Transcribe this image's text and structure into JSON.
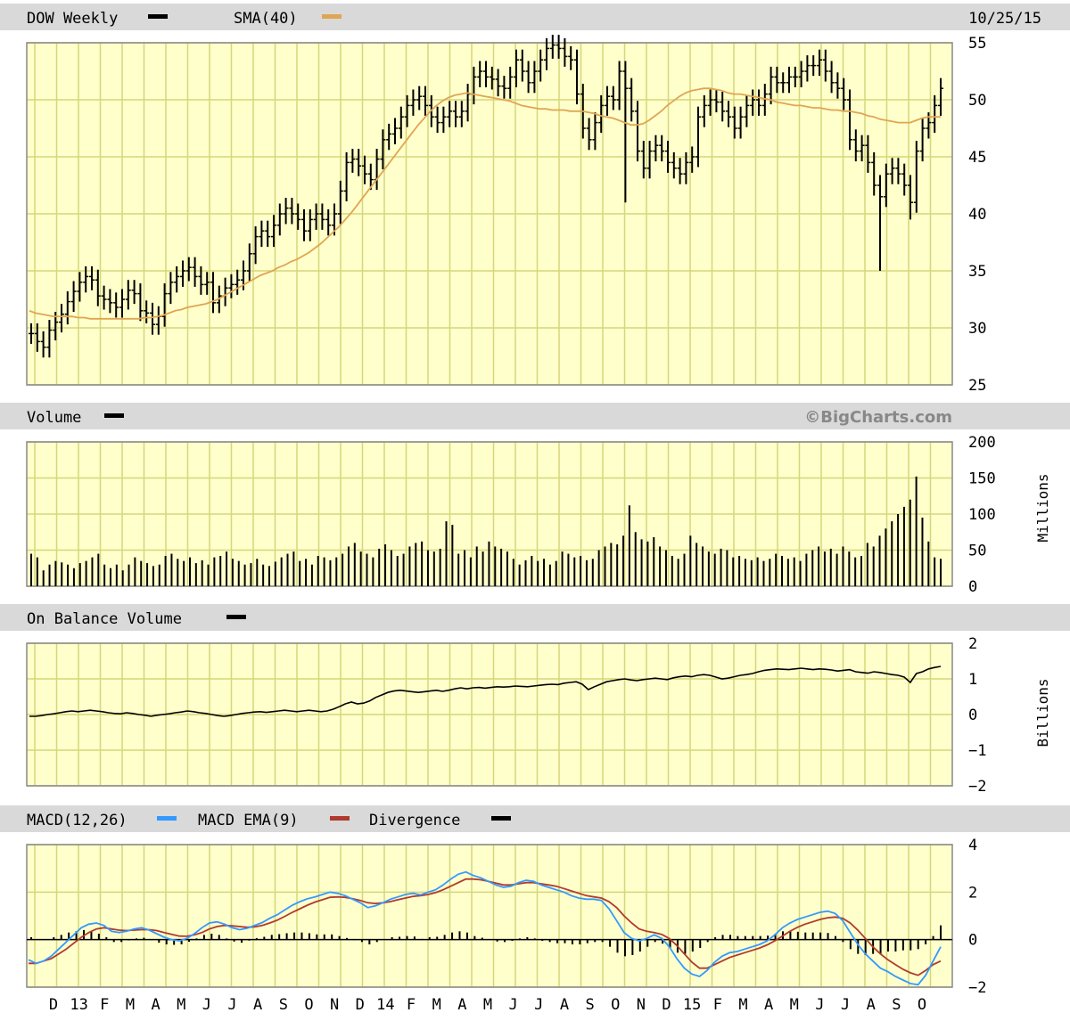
{
  "header": {
    "symbol_label": "DOW Weekly",
    "sma_label": "SMA(40)",
    "date": "10/25/15"
  },
  "volume_panel": {
    "label": "Volume",
    "units": "Millions",
    "watermark": "©BigCharts.com"
  },
  "obv_panel": {
    "label": "On Balance Volume",
    "units": "Billions"
  },
  "macd_panel": {
    "label_macd": "MACD(12,26)",
    "label_ema": "MACD EMA(9)",
    "label_div": "Divergence"
  },
  "x_axis_labels": [
    "D",
    "13",
    "F",
    "M",
    "A",
    "M",
    "J",
    "J",
    "A",
    "S",
    "O",
    "N",
    "D",
    "14",
    "F",
    "M",
    "A",
    "M",
    "J",
    "J",
    "A",
    "S",
    "O",
    "N",
    "D",
    "15",
    "F",
    "M",
    "A",
    "M",
    "J",
    "J",
    "A",
    "S",
    "O"
  ],
  "colors": {
    "plot_bg": "#FFFFCC",
    "grid": "#D6D67A",
    "header_bg": "#D9D9D9",
    "price": "#000000",
    "sma": "#E0A552",
    "macd": "#3399FF",
    "ema": "#B03A2E",
    "volume": "#000000"
  },
  "chart_data": [
    {
      "type": "ohlc",
      "title": "DOW Weekly",
      "x_range": [
        "Nov 2012",
        "Oct 2015"
      ],
      "ylim": [
        25,
        55
      ],
      "yticks": [
        25,
        30,
        35,
        40,
        45,
        50,
        55
      ],
      "grid": true,
      "series": [
        {
          "name": "DOW Weekly",
          "close": [
            29.5,
            28.8,
            28.3,
            29.8,
            30.5,
            31.2,
            32.3,
            33.2,
            34.0,
            34.5,
            34.2,
            32.8,
            32.5,
            32.2,
            31.8,
            32.5,
            33.3,
            33.0,
            31.5,
            31.3,
            30.3,
            31.0,
            33.0,
            34.0,
            34.5,
            35.0,
            35.3,
            34.5,
            33.8,
            34.0,
            32.2,
            32.8,
            33.5,
            33.8,
            34.2,
            35.0,
            36.5,
            38.0,
            38.5,
            38.0,
            39.0,
            40.0,
            40.5,
            40.0,
            39.5,
            38.5,
            39.5,
            40.0,
            39.5,
            39.0,
            40.0,
            42.0,
            44.5,
            44.8,
            44.2,
            43.5,
            43.0,
            44.8,
            46.5,
            47.0,
            47.5,
            48.5,
            49.5,
            50.0,
            50.3,
            49.5,
            48.5,
            48.0,
            48.5,
            49.0,
            48.5,
            49.0,
            50.5,
            52.0,
            52.5,
            52.0,
            51.8,
            51.2,
            51.0,
            52.0,
            53.5,
            52.5,
            51.5,
            52.5,
            53.5,
            54.5,
            54.8,
            54.5,
            53.8,
            53.5,
            50.5,
            47.5,
            46.5,
            48.0,
            49.5,
            50.3,
            50.0,
            52.5,
            51.0,
            49.0,
            45.5,
            44.0,
            45.5,
            46.0,
            45.5,
            44.5,
            44.0,
            43.5,
            44.5,
            45.0,
            48.5,
            49.5,
            50.0,
            49.8,
            49.0,
            48.5,
            47.5,
            48.5,
            49.5,
            50.0,
            49.5,
            50.5,
            52.0,
            51.5,
            51.5,
            52.0,
            52.0,
            52.5,
            53.0,
            53.0,
            53.5,
            52.5,
            51.5,
            51.0,
            50.0,
            46.5,
            45.5,
            46.0,
            44.5,
            42.5,
            41.5,
            43.5,
            44.0,
            43.5,
            42.5,
            41.0,
            45.5,
            47.5,
            48.0,
            49.5,
            51.0
          ],
          "low_spikes": [
            {
              "week": 98,
              "low": 41.0
            },
            {
              "week": 140,
              "low": 35.0
            },
            {
              "week": 145,
              "low": 39.5
            }
          ]
        },
        {
          "name": "SMA(40)",
          "values": [
            31.5,
            31.3,
            31.2,
            31.1,
            31.0,
            31.0,
            31.0,
            31.0,
            30.9,
            30.9,
            30.8,
            30.8,
            30.8,
            30.8,
            30.8,
            30.8,
            30.8,
            30.8,
            30.8,
            30.9,
            30.9,
            31.0,
            31.1,
            31.3,
            31.5,
            31.6,
            31.8,
            31.9,
            32.0,
            32.1,
            32.3,
            32.5,
            32.8,
            33.1,
            33.4,
            33.7,
            34.0,
            34.3,
            34.6,
            34.8,
            35.0,
            35.3,
            35.5,
            35.8,
            36.0,
            36.3,
            36.6,
            37.0,
            37.4,
            37.9,
            38.4,
            38.9,
            39.5,
            40.1,
            40.8,
            41.5,
            42.2,
            42.9,
            43.6,
            44.3,
            45.0,
            45.7,
            46.4,
            47.1,
            47.8,
            48.4,
            49.0,
            49.5,
            49.9,
            50.2,
            50.4,
            50.5,
            50.6,
            50.5,
            50.4,
            50.3,
            50.2,
            50.1,
            50.0,
            49.9,
            49.7,
            49.5,
            49.4,
            49.3,
            49.2,
            49.2,
            49.1,
            49.1,
            49.1,
            49.0,
            49.0,
            49.0,
            48.9,
            48.8,
            48.6,
            48.5,
            48.4,
            48.2,
            48.0,
            47.8,
            47.8,
            47.9,
            48.2,
            48.6,
            49.0,
            49.5,
            49.9,
            50.3,
            50.6,
            50.8,
            50.9,
            51.0,
            51.0,
            50.9,
            50.8,
            50.6,
            50.5,
            50.5,
            50.4,
            50.3,
            50.2,
            50.1,
            50.0,
            49.8,
            49.7,
            49.6,
            49.5,
            49.5,
            49.4,
            49.3,
            49.3,
            49.2,
            49.1,
            49.1,
            49.0,
            49.0,
            48.9,
            48.8,
            48.6,
            48.5,
            48.3,
            48.2,
            48.1,
            48.0,
            48.0,
            48.0,
            48.2,
            48.4,
            48.5,
            48.5,
            48.5
          ]
        }
      ]
    },
    {
      "type": "bar",
      "title": "Volume",
      "ylabel": "Millions",
      "ylim": [
        0,
        200
      ],
      "yticks": [
        0,
        50,
        100,
        150,
        200
      ],
      "series": [
        {
          "name": "Volume",
          "values": [
            45,
            40,
            22,
            30,
            35,
            33,
            30,
            25,
            32,
            35,
            40,
            45,
            30,
            25,
            30,
            22,
            30,
            40,
            35,
            32,
            28,
            30,
            42,
            45,
            38,
            35,
            40,
            32,
            36,
            30,
            40,
            42,
            48,
            38,
            35,
            30,
            32,
            38,
            30,
            28,
            34,
            40,
            45,
            48,
            35,
            38,
            30,
            42,
            40,
            36,
            40,
            45,
            55,
            60,
            48,
            45,
            40,
            52,
            58,
            50,
            42,
            45,
            55,
            60,
            62,
            50,
            48,
            52,
            90,
            85,
            45,
            50,
            40,
            55,
            48,
            62,
            55,
            52,
            48,
            38,
            30,
            36,
            42,
            35,
            38,
            30,
            35,
            48,
            45,
            40,
            42,
            36,
            38,
            50,
            55,
            60,
            58,
            70,
            112,
            75,
            65,
            62,
            68,
            55,
            50,
            42,
            38,
            45,
            70,
            60,
            55,
            48,
            45,
            52,
            50,
            40,
            42,
            38,
            36,
            40,
            35,
            38,
            45,
            42,
            38,
            40,
            35,
            45,
            50,
            55,
            48,
            52,
            45,
            55,
            48,
            40,
            42,
            60,
            55,
            70,
            80,
            90,
            100,
            110,
            120,
            152,
            95,
            62,
            40,
            38
          ]
        }
      ]
    },
    {
      "type": "line",
      "title": "On Balance Volume",
      "ylabel": "Billions",
      "ylim": [
        -2,
        2
      ],
      "yticks": [
        -2,
        -1,
        0,
        1,
        2
      ],
      "series": [
        {
          "name": "On Balance Volume",
          "values": [
            -0.05,
            -0.05,
            -0.03,
            0,
            0.02,
            0.05,
            0.08,
            0.1,
            0.08,
            0.1,
            0.12,
            0.1,
            0.08,
            0.05,
            0.03,
            0.02,
            0.05,
            0.03,
            0,
            -0.02,
            -0.05,
            -0.02,
            0,
            0.02,
            0.05,
            0.07,
            0.1,
            0.08,
            0.05,
            0.03,
            0,
            -0.03,
            -0.05,
            -0.03,
            0,
            0.03,
            0.05,
            0.07,
            0.08,
            0.06,
            0.08,
            0.1,
            0.12,
            0.1,
            0.08,
            0.1,
            0.12,
            0.1,
            0.08,
            0.1,
            0.15,
            0.22,
            0.3,
            0.35,
            0.3,
            0.32,
            0.38,
            0.48,
            0.55,
            0.62,
            0.66,
            0.68,
            0.66,
            0.64,
            0.62,
            0.64,
            0.66,
            0.68,
            0.65,
            0.68,
            0.72,
            0.75,
            0.72,
            0.75,
            0.76,
            0.74,
            0.76,
            0.78,
            0.77,
            0.78,
            0.8,
            0.79,
            0.78,
            0.8,
            0.82,
            0.84,
            0.85,
            0.84,
            0.88,
            0.9,
            0.92,
            0.85,
            0.7,
            0.78,
            0.85,
            0.92,
            0.95,
            0.98,
            1.0,
            0.97,
            0.95,
            0.98,
            1.0,
            1.02,
            1.0,
            0.98,
            1.03,
            1.06,
            1.08,
            1.06,
            1.1,
            1.12,
            1.1,
            1.05,
            1.0,
            1.02,
            1.06,
            1.1,
            1.12,
            1.15,
            1.2,
            1.24,
            1.26,
            1.28,
            1.27,
            1.26,
            1.28,
            1.3,
            1.28,
            1.26,
            1.28,
            1.27,
            1.25,
            1.22,
            1.24,
            1.26,
            1.2,
            1.18,
            1.16,
            1.2,
            1.18,
            1.15,
            1.12,
            1.1,
            1.05,
            0.9,
            1.15,
            1.2,
            1.28,
            1.32,
            1.35
          ]
        }
      ]
    },
    {
      "type": "line",
      "title": "MACD(12,26)",
      "ylim": [
        -2,
        4
      ],
      "yticks": [
        -2,
        0,
        2,
        4
      ],
      "series": [
        {
          "name": "MACD(12,26)",
          "values": [
            -0.85,
            -1.0,
            -0.9,
            -0.7,
            -0.4,
            -0.1,
            0.2,
            0.5,
            0.65,
            0.7,
            0.6,
            0.35,
            0.3,
            0.35,
            0.45,
            0.5,
            0.4,
            0.25,
            0.1,
            0,
            -0.05,
            0.05,
            0.25,
            0.5,
            0.7,
            0.75,
            0.65,
            0.5,
            0.42,
            0.48,
            0.6,
            0.72,
            0.9,
            1.05,
            1.25,
            1.45,
            1.6,
            1.72,
            1.8,
            1.9,
            2.0,
            1.95,
            1.85,
            1.7,
            1.55,
            1.35,
            1.42,
            1.55,
            1.7,
            1.8,
            1.9,
            1.95,
            1.88,
            2.0,
            2.1,
            2.3,
            2.55,
            2.75,
            2.85,
            2.7,
            2.6,
            2.45,
            2.3,
            2.2,
            2.25,
            2.4,
            2.5,
            2.45,
            2.3,
            2.2,
            2.1,
            2.0,
            1.85,
            1.75,
            1.7,
            1.7,
            1.65,
            1.3,
            0.8,
            0.3,
            0.05,
            -0.05,
            0.05,
            0.2,
            0.05,
            -0.3,
            -0.8,
            -1.2,
            -1.45,
            -1.55,
            -1.3,
            -0.95,
            -0.7,
            -0.55,
            -0.5,
            -0.4,
            -0.3,
            -0.2,
            -0.05,
            0.2,
            0.5,
            0.7,
            0.85,
            0.95,
            1.05,
            1.15,
            1.2,
            1.1,
            0.8,
            0.3,
            -0.2,
            -0.6,
            -0.9,
            -1.2,
            -1.35,
            -1.55,
            -1.7,
            -1.85,
            -1.9,
            -1.5,
            -0.9,
            -0.3
          ]
        },
        {
          "name": "MACD EMA(9)",
          "values": [
            -1.0,
            -1.0,
            -0.9,
            -0.8,
            -0.6,
            -0.4,
            -0.15,
            0.1,
            0.3,
            0.45,
            0.5,
            0.45,
            0.4,
            0.38,
            0.4,
            0.42,
            0.42,
            0.38,
            0.3,
            0.22,
            0.15,
            0.14,
            0.2,
            0.3,
            0.45,
            0.55,
            0.6,
            0.58,
            0.55,
            0.52,
            0.54,
            0.6,
            0.7,
            0.82,
            0.98,
            1.15,
            1.3,
            1.45,
            1.58,
            1.68,
            1.78,
            1.8,
            1.78,
            1.72,
            1.65,
            1.55,
            1.52,
            1.55,
            1.6,
            1.68,
            1.75,
            1.82,
            1.85,
            1.9,
            1.98,
            2.1,
            2.25,
            2.4,
            2.55,
            2.55,
            2.52,
            2.45,
            2.38,
            2.3,
            2.3,
            2.35,
            2.4,
            2.4,
            2.35,
            2.3,
            2.25,
            2.15,
            2.05,
            1.95,
            1.85,
            1.8,
            1.75,
            1.6,
            1.35,
            1.0,
            0.7,
            0.45,
            0.35,
            0.3,
            0.22,
            0.05,
            -0.25,
            -0.6,
            -0.95,
            -1.2,
            -1.2,
            -1.05,
            -0.9,
            -0.75,
            -0.65,
            -0.55,
            -0.45,
            -0.35,
            -0.22,
            -0.05,
            0.15,
            0.35,
            0.52,
            0.65,
            0.75,
            0.85,
            0.92,
            0.95,
            0.9,
            0.7,
            0.4,
            0.05,
            -0.3,
            -0.6,
            -0.85,
            -1.05,
            -1.25,
            -1.4,
            -1.5,
            -1.3,
            -1.05,
            -0.9
          ]
        },
        {
          "name": "Divergence",
          "values": [
            0.1,
            0,
            0,
            0.1,
            0.2,
            0.3,
            0.35,
            0.4,
            0.35,
            0.25,
            0.1,
            -0.1,
            -0.1,
            -0.03,
            0.05,
            0.08,
            -0.02,
            -0.13,
            -0.2,
            -0.22,
            -0.2,
            -0.09,
            0.05,
            0.2,
            0.25,
            0.2,
            0.05,
            -0.08,
            -0.13,
            -0.04,
            0.06,
            0.12,
            0.2,
            0.23,
            0.27,
            0.3,
            0.3,
            0.27,
            0.22,
            0.22,
            0.22,
            0.15,
            0.07,
            -0.02,
            -0.1,
            -0.2,
            -0.1,
            0,
            0.1,
            0.12,
            0.15,
            0.13,
            0.03,
            0.1,
            0.12,
            0.2,
            0.3,
            0.35,
            0.3,
            0.15,
            0.08,
            0,
            -0.08,
            -0.1,
            -0.05,
            0.05,
            0.1,
            0.05,
            -0.05,
            -0.1,
            -0.15,
            -0.15,
            -0.2,
            -0.2,
            -0.15,
            -0.1,
            -0.1,
            -0.3,
            -0.55,
            -0.7,
            -0.65,
            -0.5,
            -0.3,
            -0.1,
            -0.17,
            -0.35,
            -0.55,
            -0.6,
            -0.5,
            -0.35,
            -0.1,
            0.1,
            0.2,
            0.2,
            0.15,
            0.15,
            0.15,
            0.15,
            0.17,
            0.25,
            0.35,
            0.35,
            0.33,
            0.3,
            0.3,
            0.3,
            0.28,
            0.15,
            -0.1,
            -0.4,
            -0.6,
            -0.65,
            -0.6,
            -0.6,
            -0.5,
            -0.5,
            -0.45,
            -0.45,
            -0.4,
            -0.2,
            0.15,
            0.6
          ]
        }
      ]
    }
  ]
}
